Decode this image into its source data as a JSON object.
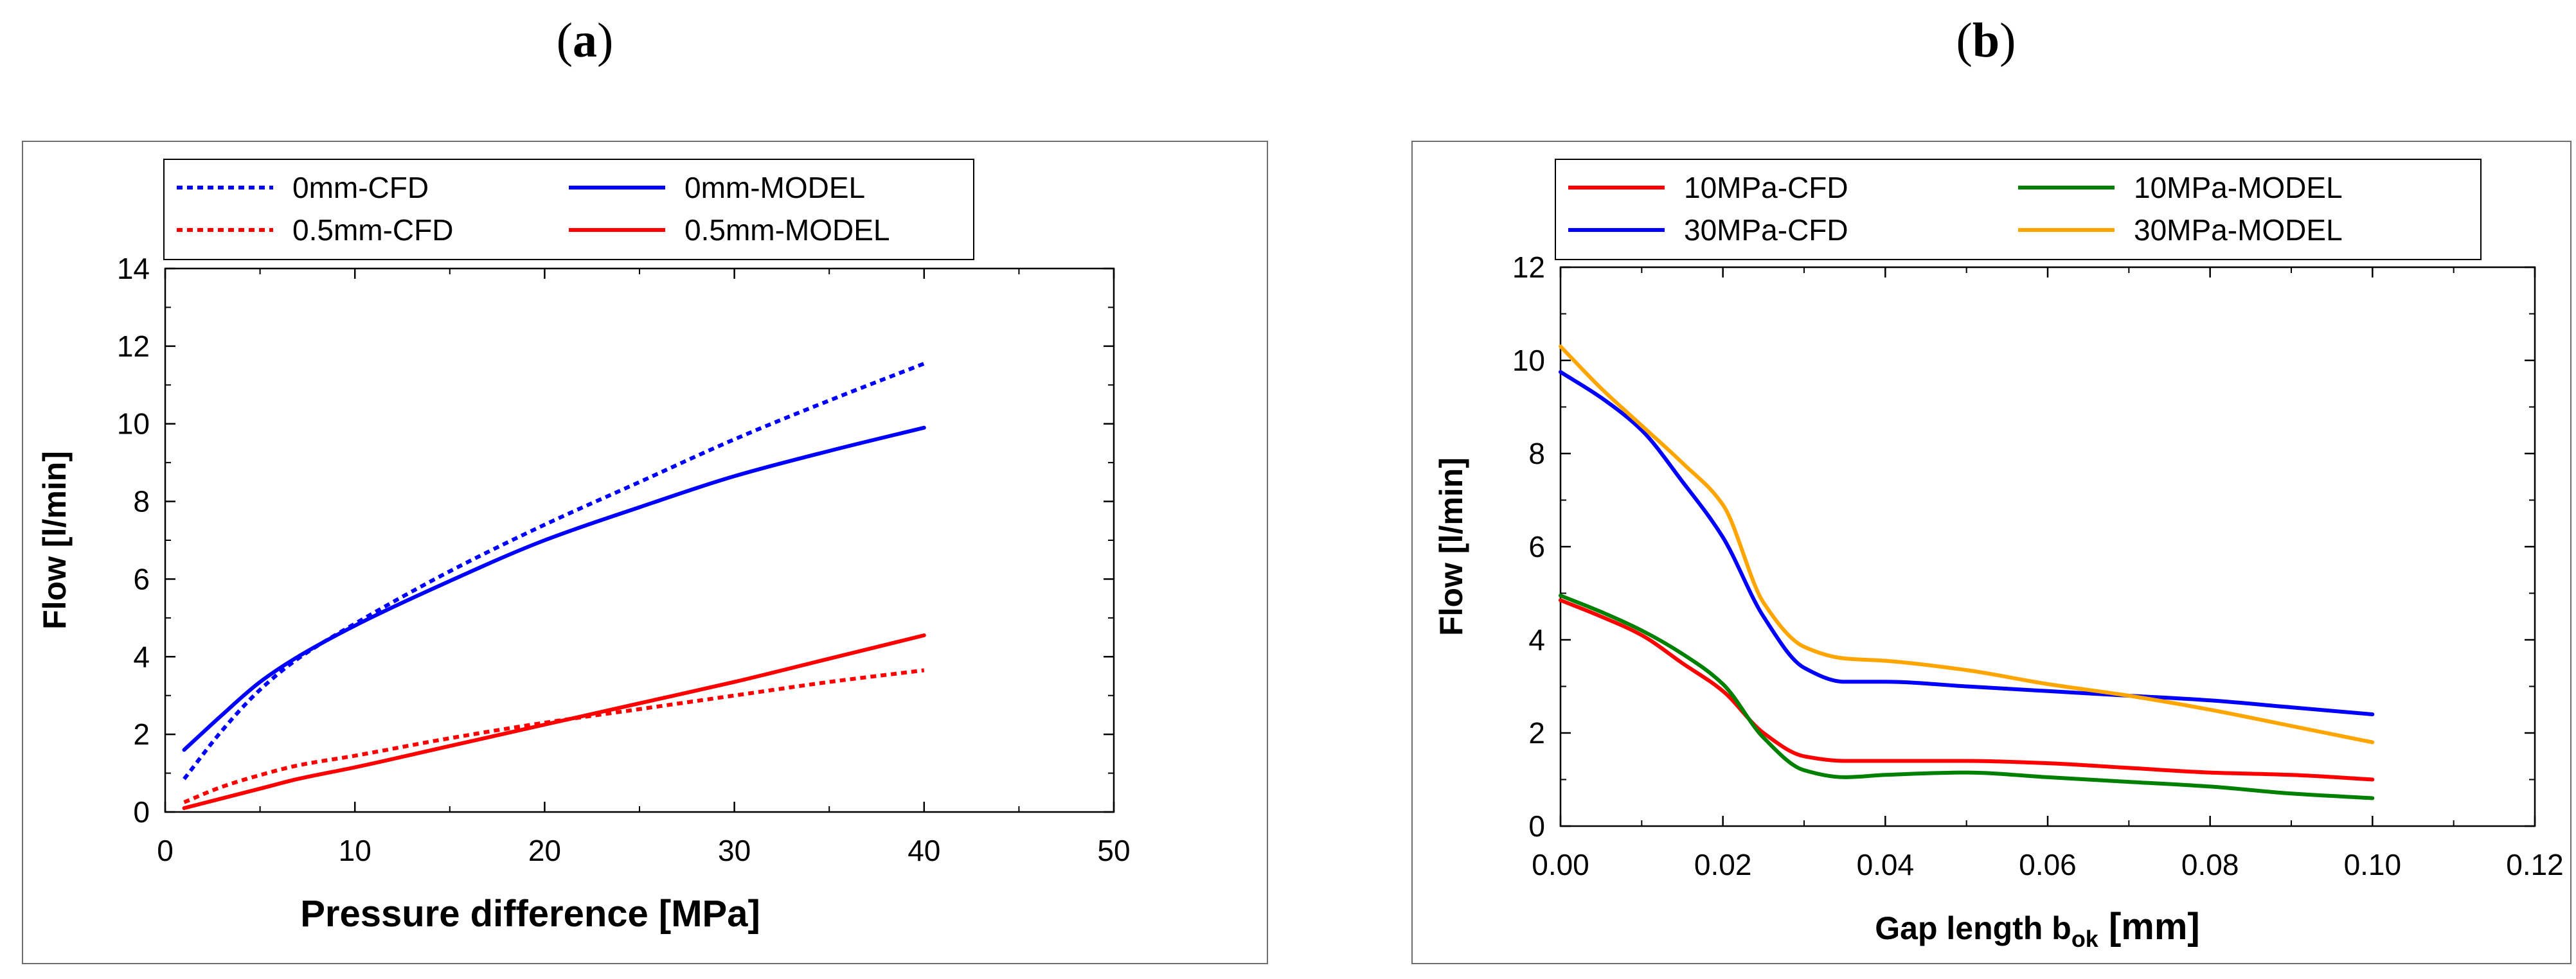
{
  "panels": {
    "a_label": "a",
    "b_label": "b"
  },
  "chart_data": [
    {
      "type": "line",
      "xlabel": "Pressure difference   [MPa]",
      "ylabel": "Flow   [l/min]",
      "xlim": [
        0,
        50
      ],
      "ylim": [
        0,
        14
      ],
      "xticks": [
        "0",
        "10",
        "20",
        "30",
        "40",
        "50"
      ],
      "yticks": [
        "0",
        "2",
        "4",
        "6",
        "8",
        "10",
        "12",
        "14"
      ],
      "grid": false,
      "legend_position": "top",
      "series": [
        {
          "name": "0mm-CFD",
          "color": "#0000ff",
          "dash": "dotted",
          "x": [
            1,
            3,
            5,
            7,
            10,
            15,
            20,
            25,
            30,
            35,
            40
          ],
          "y": [
            0.85,
            2.1,
            3.15,
            3.95,
            4.85,
            6.2,
            7.4,
            8.5,
            9.6,
            10.6,
            11.55
          ]
        },
        {
          "name": "0mm-MODEL",
          "color": "#0000ff",
          "dash": "solid",
          "x": [
            1,
            3,
            5,
            7,
            10,
            15,
            20,
            25,
            30,
            35,
            40
          ],
          "y": [
            1.6,
            2.5,
            3.35,
            4.0,
            4.8,
            5.95,
            7.0,
            7.85,
            8.65,
            9.3,
            9.9
          ]
        },
        {
          "name": "0.5mm-CFD",
          "color": "#ff0000",
          "dash": "dotted",
          "x": [
            1,
            3,
            5,
            7,
            10,
            15,
            20,
            25,
            30,
            35,
            40
          ],
          "y": [
            0.25,
            0.65,
            0.95,
            1.2,
            1.45,
            1.9,
            2.3,
            2.65,
            3.0,
            3.35,
            3.65
          ]
        },
        {
          "name": "0.5mm-MODEL",
          "color": "#ff0000",
          "dash": "solid",
          "x": [
            1,
            3,
            5,
            7,
            10,
            15,
            20,
            25,
            30,
            35,
            40
          ],
          "y": [
            0.1,
            0.35,
            0.6,
            0.85,
            1.15,
            1.7,
            2.25,
            2.8,
            3.35,
            3.95,
            4.55
          ]
        }
      ]
    },
    {
      "type": "line",
      "xlabel": "Gap length    b",
      "xlabel_sub": "ok",
      "xlabel_unit": " [mm]",
      "ylabel": "Flow   [l/min]",
      "xlim": [
        0,
        0.12
      ],
      "ylim": [
        0,
        12
      ],
      "xticks": [
        "0.00",
        "0.02",
        "0.04",
        "0.06",
        "0.08",
        "0.10",
        "0.12"
      ],
      "yticks": [
        "0",
        "2",
        "4",
        "6",
        "8",
        "10",
        "12"
      ],
      "grid": false,
      "legend_position": "top",
      "series": [
        {
          "name": "10MPa-CFD",
          "color": "#ff0000",
          "dash": "solid",
          "x": [
            0,
            0.005,
            0.01,
            0.015,
            0.02,
            0.025,
            0.03,
            0.035,
            0.04,
            0.05,
            0.06,
            0.07,
            0.08,
            0.09,
            0.1
          ],
          "y": [
            4.85,
            4.5,
            4.1,
            3.5,
            2.9,
            2.0,
            1.5,
            1.4,
            1.4,
            1.4,
            1.35,
            1.25,
            1.15,
            1.1,
            1.0
          ]
        },
        {
          "name": "10MPa-MODEL",
          "color": "#008000",
          "dash": "solid",
          "x": [
            0,
            0.005,
            0.01,
            0.015,
            0.02,
            0.025,
            0.03,
            0.035,
            0.04,
            0.05,
            0.06,
            0.07,
            0.08,
            0.09,
            0.1
          ],
          "y": [
            4.95,
            4.6,
            4.2,
            3.7,
            3.05,
            1.9,
            1.2,
            1.05,
            1.1,
            1.15,
            1.05,
            0.95,
            0.85,
            0.7,
            0.6
          ]
        },
        {
          "name": "30MPa-CFD",
          "color": "#0000ff",
          "dash": "solid",
          "x": [
            0,
            0.005,
            0.01,
            0.015,
            0.02,
            0.025,
            0.03,
            0.035,
            0.04,
            0.05,
            0.06,
            0.07,
            0.08,
            0.09,
            0.1
          ],
          "y": [
            9.75,
            9.2,
            8.5,
            7.4,
            6.2,
            4.5,
            3.4,
            3.1,
            3.1,
            3.0,
            2.9,
            2.8,
            2.7,
            2.55,
            2.4
          ]
        },
        {
          "name": "30MPa-MODEL",
          "color": "#ffa500",
          "dash": "solid",
          "x": [
            0,
            0.005,
            0.01,
            0.015,
            0.02,
            0.025,
            0.03,
            0.035,
            0.04,
            0.05,
            0.06,
            0.07,
            0.08,
            0.09,
            0.1
          ],
          "y": [
            10.3,
            9.4,
            8.6,
            7.8,
            6.9,
            4.8,
            3.85,
            3.6,
            3.55,
            3.35,
            3.05,
            2.8,
            2.5,
            2.15,
            1.8
          ]
        }
      ]
    }
  ]
}
